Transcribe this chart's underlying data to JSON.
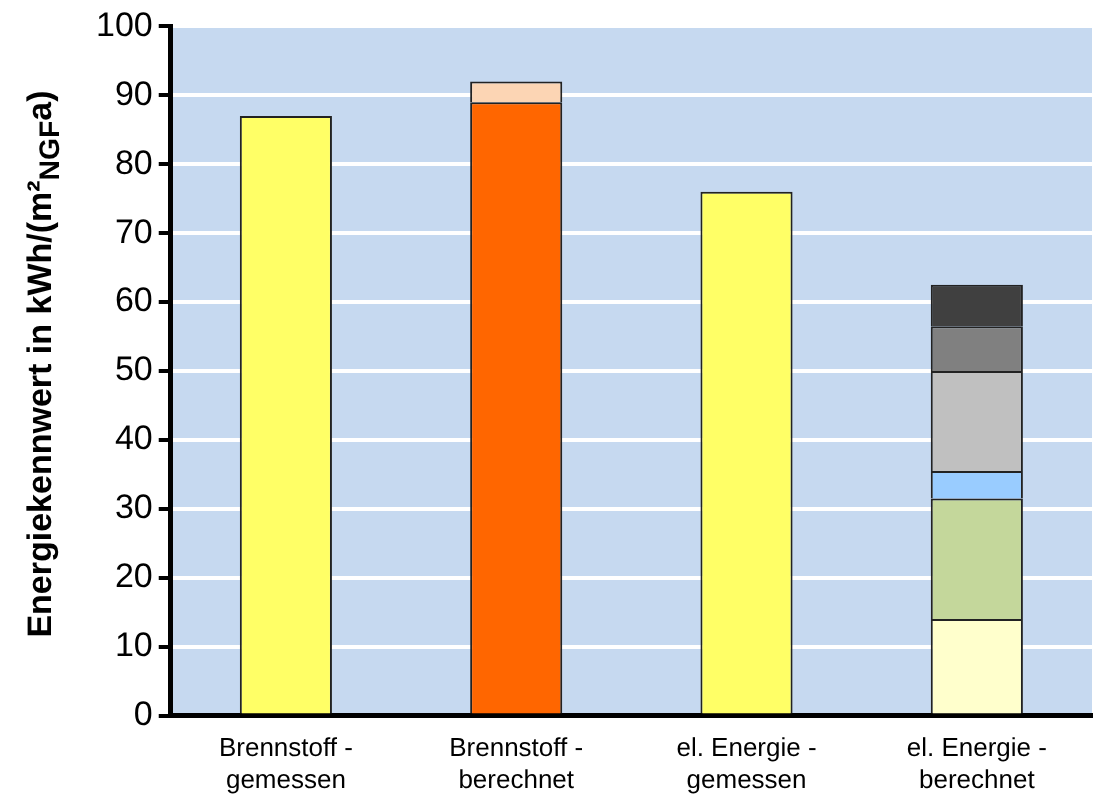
{
  "chart_data": {
    "type": "bar",
    "ylabel": "Energiekennwert in kWh/(m²$_{NGF}$a)",
    "categories": [
      "Brennstoff - gemessen",
      "Brennstoff - berechnet",
      "el. Energie - gemessen",
      "el. Energie - berechnet"
    ],
    "stacked": true,
    "ylim": [
      0,
      100
    ],
    "yticks": [
      0,
      10,
      20,
      30,
      40,
      50,
      60,
      70,
      80,
      90,
      100
    ],
    "grid": "y",
    "legend": false,
    "series": [
      {
        "colors": [
          "#ffff66",
          "#ff6600",
          "#ffff66",
          "#ffffcc"
        ],
        "values": [
          87,
          89,
          76,
          14
        ]
      },
      {
        "colors": [
          null,
          "#fcd5b4",
          null,
          "#c4d79b"
        ],
        "values": [
          null,
          3,
          null,
          17.5
        ]
      },
      {
        "color": "#99ccff",
        "values": [
          null,
          null,
          null,
          4
        ]
      },
      {
        "color": "#c0c0c0",
        "values": [
          null,
          null,
          null,
          14.5
        ]
      },
      {
        "color": "#808080",
        "values": [
          null,
          null,
          null,
          6.5
        ]
      },
      {
        "color": "#404040",
        "values": [
          null,
          null,
          null,
          6
        ]
      }
    ]
  }
}
